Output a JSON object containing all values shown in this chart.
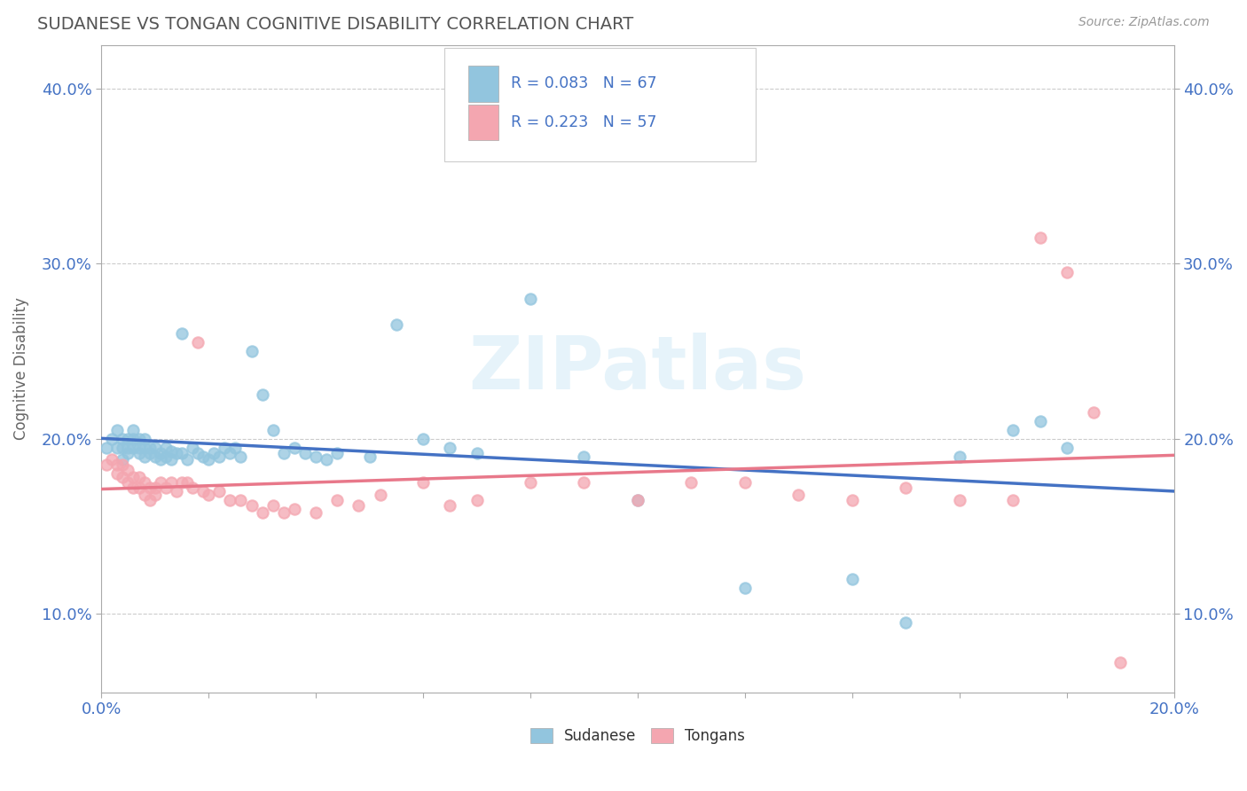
{
  "title": "SUDANESE VS TONGAN COGNITIVE DISABILITY CORRELATION CHART",
  "source_text": "Source: ZipAtlas.com",
  "ylabel": "Cognitive Disability",
  "xlim": [
    0.0,
    0.2
  ],
  "ylim": [
    0.055,
    0.425
  ],
  "ytick_vals": [
    0.1,
    0.2,
    0.3,
    0.4
  ],
  "legend_r1": "0.083",
  "legend_n1": "67",
  "legend_r2": "0.223",
  "legend_n2": "57",
  "sudanese_color": "#92C5DE",
  "tongan_color": "#F4A6B0",
  "line_color_sudanese": "#4472C4",
  "line_color_tongan": "#E8788A",
  "background_color": "#FFFFFF",
  "grid_color": "#CCCCCC",
  "sudanese_x": [
    0.001,
    0.002,
    0.003,
    0.003,
    0.004,
    0.004,
    0.004,
    0.005,
    0.005,
    0.005,
    0.006,
    0.006,
    0.006,
    0.007,
    0.007,
    0.007,
    0.008,
    0.008,
    0.008,
    0.009,
    0.009,
    0.01,
    0.01,
    0.011,
    0.011,
    0.012,
    0.012,
    0.013,
    0.013,
    0.014,
    0.015,
    0.015,
    0.016,
    0.017,
    0.018,
    0.019,
    0.02,
    0.021,
    0.022,
    0.023,
    0.024,
    0.025,
    0.026,
    0.028,
    0.03,
    0.032,
    0.034,
    0.036,
    0.038,
    0.04,
    0.042,
    0.044,
    0.05,
    0.055,
    0.06,
    0.065,
    0.07,
    0.08,
    0.09,
    0.1,
    0.12,
    0.14,
    0.15,
    0.16,
    0.17,
    0.175,
    0.18
  ],
  "sudanese_y": [
    0.195,
    0.2,
    0.205,
    0.195,
    0.2,
    0.195,
    0.188,
    0.2,
    0.195,
    0.192,
    0.205,
    0.2,
    0.195,
    0.2,
    0.195,
    0.192,
    0.2,
    0.195,
    0.19,
    0.195,
    0.192,
    0.195,
    0.19,
    0.192,
    0.188,
    0.195,
    0.19,
    0.193,
    0.188,
    0.192,
    0.26,
    0.192,
    0.188,
    0.195,
    0.192,
    0.19,
    0.188,
    0.192,
    0.19,
    0.195,
    0.192,
    0.195,
    0.19,
    0.25,
    0.225,
    0.205,
    0.192,
    0.195,
    0.192,
    0.19,
    0.188,
    0.192,
    0.19,
    0.265,
    0.2,
    0.195,
    0.192,
    0.28,
    0.19,
    0.165,
    0.115,
    0.12,
    0.095,
    0.19,
    0.205,
    0.21,
    0.195
  ],
  "tongan_x": [
    0.001,
    0.002,
    0.003,
    0.003,
    0.004,
    0.004,
    0.005,
    0.005,
    0.006,
    0.006,
    0.007,
    0.007,
    0.008,
    0.008,
    0.009,
    0.009,
    0.01,
    0.01,
    0.011,
    0.012,
    0.013,
    0.014,
    0.015,
    0.016,
    0.017,
    0.018,
    0.019,
    0.02,
    0.022,
    0.024,
    0.026,
    0.028,
    0.03,
    0.032,
    0.034,
    0.036,
    0.04,
    0.044,
    0.048,
    0.052,
    0.06,
    0.065,
    0.07,
    0.08,
    0.09,
    0.1,
    0.11,
    0.12,
    0.13,
    0.14,
    0.15,
    0.16,
    0.17,
    0.175,
    0.18,
    0.185,
    0.19
  ],
  "tongan_y": [
    0.185,
    0.188,
    0.185,
    0.18,
    0.185,
    0.178,
    0.182,
    0.175,
    0.178,
    0.172,
    0.178,
    0.172,
    0.175,
    0.168,
    0.172,
    0.165,
    0.172,
    0.168,
    0.175,
    0.172,
    0.175,
    0.17,
    0.175,
    0.175,
    0.172,
    0.255,
    0.17,
    0.168,
    0.17,
    0.165,
    0.165,
    0.162,
    0.158,
    0.162,
    0.158,
    0.16,
    0.158,
    0.165,
    0.162,
    0.168,
    0.175,
    0.162,
    0.165,
    0.175,
    0.175,
    0.165,
    0.175,
    0.175,
    0.168,
    0.165,
    0.172,
    0.165,
    0.165,
    0.315,
    0.295,
    0.215,
    0.072
  ]
}
